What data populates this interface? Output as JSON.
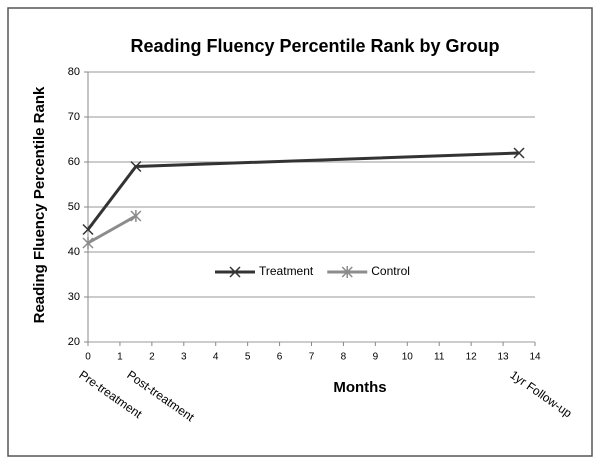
{
  "chart_data": {
    "type": "line",
    "title": "Reading Fluency Percentile Rank by Group",
    "xlabel": "Months",
    "ylabel": "Reading Fluency Percentile Rank",
    "series": [
      {
        "name": "Treatment",
        "color": "#333333",
        "marker": "x",
        "x": [
          0,
          1.5,
          13.5
        ],
        "values": [
          45,
          59,
          62
        ]
      },
      {
        "name": "Control",
        "color": "#8c8c8c",
        "marker": "star",
        "x": [
          0,
          1.5
        ],
        "values": [
          42,
          48
        ]
      }
    ],
    "xlim": [
      0,
      14
    ],
    "xticks": [
      0,
      1,
      2,
      3,
      4,
      5,
      6,
      7,
      8,
      9,
      10,
      11,
      12,
      13,
      14
    ],
    "ylim": [
      20,
      80
    ],
    "yticks": [
      20,
      30,
      40,
      50,
      60,
      70,
      80
    ],
    "grid": true,
    "legend": "center",
    "annotations": [
      {
        "text": "Pre-treatment",
        "x": 0
      },
      {
        "text": "Post-treatment",
        "x": 1.5
      },
      {
        "text": "1yr Follow-up",
        "x": 13.5
      }
    ]
  }
}
